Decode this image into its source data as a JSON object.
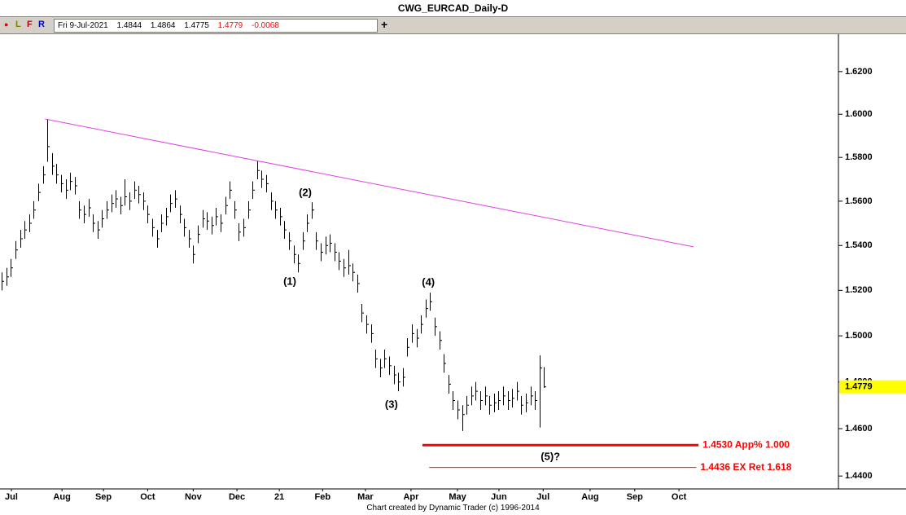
{
  "title": "CWG_EURCAD_Daily-D",
  "toolbar": {
    "buttons": [
      "●",
      "L",
      "F",
      "R"
    ],
    "date": "Fri 9-Jul-2021",
    "open": 1.4844,
    "high": 1.4864,
    "low": 1.4775,
    "close": 1.4779,
    "change": -0.0068,
    "add": "+"
  },
  "footer": "Chart created by Dynamic Trader  (c) 1996-2014",
  "chart_data": {
    "type": "ohlc",
    "color": "#000000",
    "log_scale": true,
    "ylim": [
      1.4346,
      1.6385
    ],
    "yticks": [
      {
        "value": 1.44,
        "label": "1.4400"
      },
      {
        "value": 1.46,
        "label": "1.4600"
      },
      {
        "value": 1.48,
        "label": "1.4800"
      },
      {
        "value": 1.5,
        "label": "1.5000"
      },
      {
        "value": 1.52,
        "label": "1.5200"
      },
      {
        "value": 1.54,
        "label": "1.5400"
      },
      {
        "value": 1.56,
        "label": "1.5600"
      },
      {
        "value": 1.58,
        "label": "1.5800"
      },
      {
        "value": 1.6,
        "label": "1.6000"
      },
      {
        "value": 1.62,
        "label": "1.6200"
      }
    ],
    "xlim": [
      -0.4,
      183.6
    ],
    "xticks": [
      {
        "value": 2.1,
        "label": "Jul"
      },
      {
        "value": 13.2,
        "label": "Aug"
      },
      {
        "value": 22.3,
        "label": "Sep"
      },
      {
        "value": 32.0,
        "label": "Oct"
      },
      {
        "value": 42.0,
        "label": "Nov"
      },
      {
        "value": 51.6,
        "label": "Dec"
      },
      {
        "value": 60.9,
        "label": "21"
      },
      {
        "value": 70.4,
        "label": "Feb"
      },
      {
        "value": 79.8,
        "label": "Mar"
      },
      {
        "value": 89.8,
        "label": "Apr"
      },
      {
        "value": 100.0,
        "label": "May"
      },
      {
        "value": 109.1,
        "label": "Jun"
      },
      {
        "value": 118.8,
        "label": "Jul"
      },
      {
        "value": 129.1,
        "label": "Aug"
      },
      {
        "value": 138.9,
        "label": "Sep"
      },
      {
        "value": 148.6,
        "label": "Oct"
      }
    ],
    "x": [
      0,
      1,
      2,
      3,
      4,
      5,
      6,
      7,
      8,
      9,
      10,
      11,
      12,
      13,
      14,
      15,
      16,
      17,
      18,
      19,
      20,
      21,
      22,
      23,
      24,
      25,
      26,
      27,
      28,
      29,
      30,
      31,
      32,
      33,
      34,
      35,
      36,
      37,
      38,
      39,
      40,
      41,
      42,
      43,
      44,
      45,
      46,
      47,
      48,
      49,
      50,
      51,
      52,
      53,
      54,
      55,
      56,
      57,
      58,
      59,
      60,
      61,
      62,
      63,
      64,
      65,
      66,
      67,
      68,
      69,
      70,
      71,
      72,
      73,
      74,
      75,
      76,
      77,
      78,
      79,
      80,
      81,
      82,
      83,
      84,
      85,
      86,
      87,
      88,
      89,
      90,
      91,
      92,
      93,
      94,
      95,
      96,
      97,
      98,
      99,
      100,
      101,
      102,
      103,
      104,
      105,
      106,
      107,
      108,
      109,
      110,
      111,
      112,
      113,
      114,
      115,
      116,
      117,
      118,
      119
    ],
    "high": [
      1.528,
      1.53,
      1.534,
      1.542,
      1.547,
      1.551,
      1.554,
      1.56,
      1.568,
      1.576,
      1.5978,
      1.582,
      1.577,
      1.572,
      1.57,
      1.573,
      1.571,
      1.56,
      1.558,
      1.561,
      1.554,
      1.551,
      1.556,
      1.56,
      1.563,
      1.565,
      1.562,
      1.57,
      1.564,
      1.569,
      1.567,
      1.564,
      1.558,
      1.552,
      1.547,
      1.554,
      1.557,
      1.563,
      1.565,
      1.558,
      1.552,
      1.547,
      1.54,
      1.549,
      1.556,
      1.555,
      1.553,
      1.557,
      1.554,
      1.562,
      1.569,
      1.56,
      1.55,
      1.552,
      1.56,
      1.569,
      1.5785,
      1.574,
      1.572,
      1.564,
      1.56,
      1.557,
      1.551,
      1.546,
      1.54,
      1.536,
      1.546,
      1.554,
      1.5595,
      1.546,
      1.541,
      1.544,
      1.545,
      1.541,
      1.537,
      1.534,
      1.538,
      1.532,
      1.527,
      1.514,
      1.509,
      1.505,
      1.494,
      1.49,
      1.494,
      1.491,
      1.487,
      1.484,
      1.486,
      1.499,
      1.505,
      1.503,
      1.509,
      1.516,
      1.519,
      1.508,
      1.502,
      1.492,
      1.483,
      1.476,
      1.472,
      1.47,
      1.474,
      1.478,
      1.48,
      1.476,
      1.478,
      1.474,
      1.475,
      1.476,
      1.478,
      1.476,
      1.477,
      1.48,
      1.474,
      1.475,
      1.478,
      1.476,
      1.4915,
      1.4864
    ],
    "low": [
      1.52,
      1.522,
      1.526,
      1.534,
      1.539,
      1.543,
      1.546,
      1.552,
      1.56,
      1.568,
      1.578,
      1.572,
      1.568,
      1.564,
      1.561,
      1.565,
      1.563,
      1.552,
      1.55,
      1.553,
      1.546,
      1.543,
      1.548,
      1.552,
      1.555,
      1.557,
      1.554,
      1.558,
      1.556,
      1.561,
      1.559,
      1.556,
      1.55,
      1.544,
      1.539,
      1.546,
      1.549,
      1.555,
      1.557,
      1.55,
      1.544,
      1.539,
      1.532,
      1.541,
      1.548,
      1.547,
      1.545,
      1.549,
      1.546,
      1.554,
      1.561,
      1.552,
      1.542,
      1.544,
      1.552,
      1.561,
      1.57,
      1.566,
      1.564,
      1.556,
      1.552,
      1.549,
      1.543,
      1.538,
      1.532,
      1.528,
      1.538,
      1.546,
      1.552,
      1.538,
      1.533,
      1.536,
      1.537,
      1.533,
      1.529,
      1.526,
      1.527,
      1.524,
      1.519,
      1.506,
      1.501,
      1.497,
      1.486,
      1.482,
      1.486,
      1.483,
      1.479,
      1.476,
      1.478,
      1.491,
      1.497,
      1.495,
      1.501,
      1.508,
      1.511,
      1.5,
      1.494,
      1.484,
      1.475,
      1.468,
      1.464,
      1.459,
      1.466,
      1.47,
      1.472,
      1.468,
      1.47,
      1.466,
      1.467,
      1.468,
      1.47,
      1.468,
      1.469,
      1.472,
      1.466,
      1.467,
      1.47,
      1.468,
      1.4605,
      1.4775
    ],
    "close": [
      1.524,
      1.526,
      1.53,
      1.538,
      1.543,
      1.547,
      1.55,
      1.556,
      1.564,
      1.572,
      1.585,
      1.576,
      1.572,
      1.568,
      1.565,
      1.569,
      1.567,
      1.556,
      1.554,
      1.557,
      1.55,
      1.547,
      1.552,
      1.556,
      1.559,
      1.561,
      1.558,
      1.562,
      1.56,
      1.565,
      1.563,
      1.56,
      1.554,
      1.548,
      1.543,
      1.55,
      1.553,
      1.559,
      1.561,
      1.554,
      1.548,
      1.543,
      1.536,
      1.545,
      1.552,
      1.551,
      1.549,
      1.553,
      1.55,
      1.558,
      1.565,
      1.556,
      1.546,
      1.548,
      1.556,
      1.565,
      1.574,
      1.57,
      1.568,
      1.56,
      1.556,
      1.553,
      1.547,
      1.542,
      1.536,
      1.532,
      1.542,
      1.55,
      1.556,
      1.542,
      1.537,
      1.54,
      1.541,
      1.537,
      1.533,
      1.53,
      1.531,
      1.528,
      1.523,
      1.51,
      1.505,
      1.501,
      1.49,
      1.486,
      1.49,
      1.487,
      1.483,
      1.48,
      1.482,
      1.495,
      1.501,
      1.499,
      1.505,
      1.512,
      1.515,
      1.504,
      1.498,
      1.488,
      1.479,
      1.472,
      1.468,
      1.466,
      1.47,
      1.474,
      1.476,
      1.472,
      1.474,
      1.47,
      1.471,
      1.472,
      1.474,
      1.472,
      1.473,
      1.476,
      1.47,
      1.471,
      1.474,
      1.472,
      1.486,
      1.4779
    ],
    "last_price_color": "#ffff00",
    "trendline": {
      "x": [
        9.5,
        151.8
      ],
      "y": [
        1.5978,
        1.5394
      ],
      "color": "#e040e0"
    },
    "levels": [
      {
        "value": 1.453,
        "label": "1.4530 App% 1.000",
        "x": [
          92.3,
          152.9
        ],
        "color": "#ff0000"
      },
      {
        "value": 1.4436,
        "label": "1.4436 EX Ret 1.618",
        "x": [
          93.8,
          152.4
        ],
        "color": "#ff0000"
      }
    ],
    "annotations": [
      {
        "text": "(1)",
        "x": 63.2,
        "y": 1.5237
      },
      {
        "text": "(2)",
        "x": 66.6,
        "y": 1.5637
      },
      {
        "text": "(3)",
        "x": 85.5,
        "y": 1.47
      },
      {
        "text": "(4)",
        "x": 93.6,
        "y": 1.5233
      },
      {
        "text": "(5)?",
        "x": 120.4,
        "y": 1.4479
      }
    ]
  }
}
